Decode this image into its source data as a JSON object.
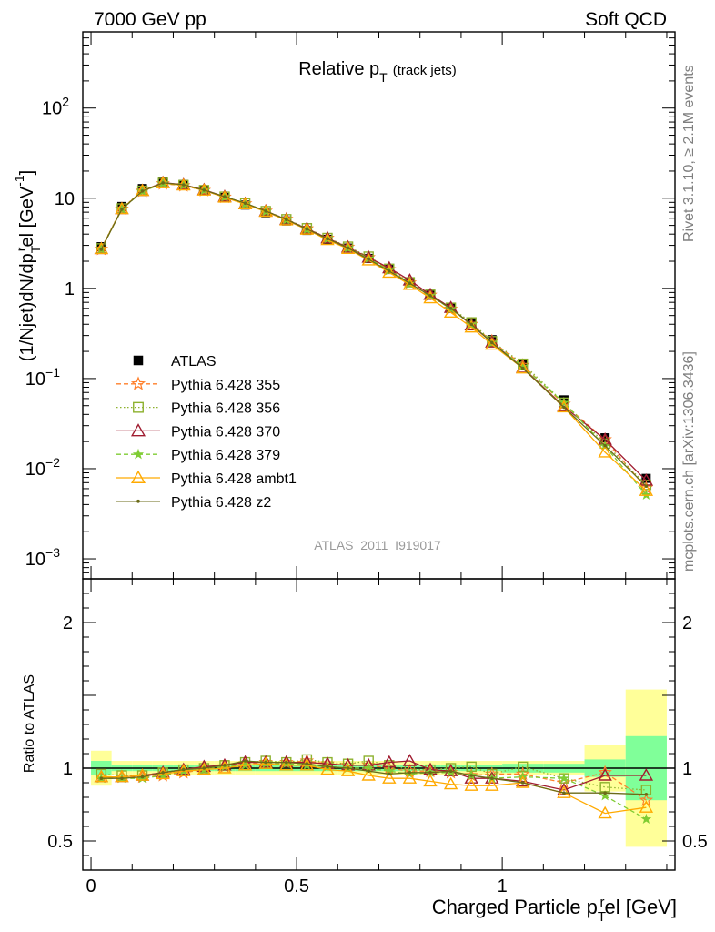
{
  "header": {
    "left": "7000 GeV pp",
    "right": "Soft QCD"
  },
  "side_text": {
    "rivet": "Rivet 3.1.10, ≥ 2.1M events",
    "mcplots": "mcplots.cern.ch [arXiv:1306.3436]"
  },
  "watermark": "ATLAS_2011_I919017",
  "colors": {
    "ATLAS": "#000000",
    "p355": "#ff7f2a",
    "p356": "#8db12e",
    "p370": "#a01c30",
    "p379": "#7fcc33",
    "ambt1": "#ffaa00",
    "z2": "#6b6b18",
    "band_green": "#80ff99",
    "band_yellow": "#ffff99"
  },
  "chart_data": [
    {
      "type": "line",
      "title": "Relative p_T (track jets)",
      "title_main": "Relative p",
      "title_sub": "T",
      "title_note": "(track jets)",
      "ylabel": "(1/Njet)dN/dp^rel_T [GeV^-1]",
      "ylabel_parts": [
        "(1/Njet)dN/dp",
        "T",
        "r",
        "el [GeV",
        "-1",
        "]"
      ],
      "yscale": "log",
      "ylim": [
        0.0006,
        700
      ],
      "xlim": [
        -0.02,
        1.42
      ],
      "y_ticks": [
        {
          "value": 0.001,
          "base": "10",
          "exp": "−3"
        },
        {
          "value": 0.01,
          "base": "10",
          "exp": "−2"
        },
        {
          "value": 0.1,
          "base": "10",
          "exp": "−1"
        },
        {
          "value": 1,
          "base": "1",
          "exp": ""
        },
        {
          "value": 10,
          "base": "10",
          "exp": ""
        },
        {
          "value": 100,
          "base": "10",
          "exp": "2"
        }
      ],
      "legend_position": "lower-left",
      "x": [
        0.025,
        0.075,
        0.125,
        0.175,
        0.225,
        0.275,
        0.325,
        0.375,
        0.425,
        0.475,
        0.525,
        0.575,
        0.625,
        0.675,
        0.725,
        0.775,
        0.825,
        0.875,
        0.925,
        0.975,
        1.05,
        1.15,
        1.25,
        1.35
      ],
      "series": [
        {
          "name": "ATLAS",
          "key": "ATLAS",
          "marker": "square",
          "line": "none",
          "values": [
            2.9,
            8.1,
            12.8,
            15.3,
            14.2,
            12.3,
            10.2,
            8.4,
            6.9,
            5.6,
            4.4,
            3.5,
            2.8,
            2.15,
            1.62,
            1.18,
            0.86,
            0.61,
            0.42,
            0.27,
            0.145,
            0.058,
            0.022,
            0.0078
          ]
        },
        {
          "name": "Pythia 6.428 355",
          "key": "p355",
          "marker": "star",
          "line": "dashed",
          "values": [
            2.72,
            7.6,
            12.0,
            14.5,
            13.8,
            12.2,
            10.3,
            8.7,
            7.2,
            5.85,
            4.6,
            3.6,
            2.87,
            2.2,
            1.62,
            1.15,
            0.84,
            0.59,
            0.4,
            0.26,
            0.14,
            0.052,
            0.021,
            0.0061
          ]
        },
        {
          "name": "Pythia 6.428 356",
          "key": "p356",
          "marker": "open-square",
          "line": "dotted",
          "values": [
            2.78,
            7.7,
            12.1,
            14.8,
            14.0,
            12.3,
            10.4,
            8.8,
            7.2,
            5.85,
            4.65,
            3.62,
            2.9,
            2.25,
            1.65,
            1.17,
            0.85,
            0.61,
            0.42,
            0.26,
            0.146,
            0.054,
            0.019,
            0.0066
          ]
        },
        {
          "name": "Pythia 6.428 370",
          "key": "p370",
          "marker": "open-triangle",
          "line": "solid",
          "values": [
            2.74,
            7.6,
            12.1,
            14.9,
            14.1,
            12.4,
            10.4,
            8.7,
            7.2,
            5.8,
            4.6,
            3.6,
            2.85,
            2.2,
            1.68,
            1.23,
            0.85,
            0.61,
            0.39,
            0.252,
            0.132,
            0.049,
            0.021,
            0.0074
          ]
        },
        {
          "name": "Pythia 6.428 379",
          "key": "p379",
          "marker": "star-small",
          "line": "dashed",
          "values": [
            2.71,
            7.55,
            11.9,
            14.6,
            13.9,
            12.2,
            10.3,
            8.6,
            7.1,
            5.75,
            4.5,
            3.55,
            2.8,
            2.15,
            1.58,
            1.13,
            0.83,
            0.59,
            0.4,
            0.25,
            0.136,
            0.054,
            0.0178,
            0.0051
          ]
        },
        {
          "name": "Pythia 6.428 ambt1",
          "key": "ambt1",
          "marker": "open-triangle",
          "line": "solid",
          "values": [
            2.74,
            7.6,
            12.1,
            14.7,
            13.9,
            12.2,
            10.2,
            8.6,
            7.1,
            5.7,
            4.5,
            3.45,
            2.75,
            2.05,
            1.5,
            1.1,
            0.78,
            0.54,
            0.37,
            0.238,
            0.13,
            0.048,
            0.0152,
            0.0057
          ]
        },
        {
          "name": "Pythia 6.428 z2",
          "key": "z2",
          "marker": "dot",
          "line": "solid",
          "values": [
            2.71,
            7.55,
            12.0,
            14.8,
            14.1,
            12.3,
            10.4,
            8.8,
            7.2,
            5.8,
            4.55,
            3.55,
            2.8,
            2.1,
            1.55,
            1.14,
            0.83,
            0.6,
            0.4,
            0.25,
            0.13,
            0.048,
            0.018,
            0.0064
          ]
        }
      ]
    },
    {
      "type": "line",
      "ylabel": "Ratio to ATLAS",
      "xlabel": "Charged Particle p^rel_T [GeV]",
      "xlabel_parts": [
        "Charged Particle p",
        "T",
        "r",
        "el [GeV]"
      ],
      "ylim": [
        0.3,
        2.3
      ],
      "xlim": [
        -0.02,
        1.42
      ],
      "y_ticks": [
        {
          "value": 0.5,
          "label": "0.5"
        },
        {
          "value": 1,
          "label": "1"
        },
        {
          "value": 2,
          "label": "2"
        }
      ],
      "x_ticks": [
        {
          "value": 0,
          "label": "0"
        },
        {
          "value": 0.5,
          "label": "0.5"
        },
        {
          "value": 1,
          "label": "1"
        }
      ],
      "band_bins": [
        {
          "lo": 0,
          "hi": 0.05,
          "stat": 0.05,
          "total": 0.12
        },
        {
          "lo": 0.05,
          "hi": 0.1,
          "stat": 0.02,
          "total": 0.05
        },
        {
          "lo": 0.1,
          "hi": 0.15,
          "stat": 0.02,
          "total": 0.05
        },
        {
          "lo": 0.15,
          "hi": 0.2,
          "stat": 0.02,
          "total": 0.05
        },
        {
          "lo": 0.2,
          "hi": 0.25,
          "stat": 0.02,
          "total": 0.05
        },
        {
          "lo": 0.25,
          "hi": 0.3,
          "stat": 0.02,
          "total": 0.05
        },
        {
          "lo": 0.3,
          "hi": 0.35,
          "stat": 0.02,
          "total": 0.05
        },
        {
          "lo": 0.35,
          "hi": 0.4,
          "stat": 0.02,
          "total": 0.05
        },
        {
          "lo": 0.4,
          "hi": 0.45,
          "stat": 0.02,
          "total": 0.05
        },
        {
          "lo": 0.45,
          "hi": 0.5,
          "stat": 0.02,
          "total": 0.05
        },
        {
          "lo": 0.5,
          "hi": 0.55,
          "stat": 0.02,
          "total": 0.05
        },
        {
          "lo": 0.55,
          "hi": 0.6,
          "stat": 0.02,
          "total": 0.05
        },
        {
          "lo": 0.6,
          "hi": 0.65,
          "stat": 0.02,
          "total": 0.05
        },
        {
          "lo": 0.65,
          "hi": 0.7,
          "stat": 0.02,
          "total": 0.05
        },
        {
          "lo": 0.7,
          "hi": 0.75,
          "stat": 0.02,
          "total": 0.05
        },
        {
          "lo": 0.75,
          "hi": 0.8,
          "stat": 0.02,
          "total": 0.05
        },
        {
          "lo": 0.8,
          "hi": 0.85,
          "stat": 0.02,
          "total": 0.05
        },
        {
          "lo": 0.85,
          "hi": 0.9,
          "stat": 0.02,
          "total": 0.05
        },
        {
          "lo": 0.9,
          "hi": 0.95,
          "stat": 0.02,
          "total": 0.05
        },
        {
          "lo": 0.95,
          "hi": 1.0,
          "stat": 0.02,
          "total": 0.05
        },
        {
          "lo": 1.0,
          "hi": 1.1,
          "stat": 0.03,
          "total": 0.05
        },
        {
          "lo": 1.1,
          "hi": 1.2,
          "stat": 0.03,
          "total": 0.05
        },
        {
          "lo": 1.2,
          "hi": 1.3,
          "stat": 0.06,
          "total": 0.16
        },
        {
          "lo": 1.3,
          "hi": 1.4,
          "stat": 0.22,
          "total": 0.54
        }
      ],
      "series": [
        {
          "name": "Pythia 6.428 355",
          "key": "p355",
          "values": [
            0.94,
            0.94,
            0.94,
            0.95,
            0.97,
            0.99,
            1.01,
            1.03,
            1.04,
            1.04,
            1.05,
            1.03,
            1.02,
            1.02,
            1.0,
            0.98,
            0.98,
            0.97,
            0.95,
            0.96,
            0.96,
            0.9,
            0.97,
            0.78
          ]
        },
        {
          "name": "Pythia 6.428 356",
          "key": "p356",
          "values": [
            0.96,
            0.95,
            0.95,
            0.97,
            0.99,
            1.0,
            1.02,
            1.04,
            1.05,
            1.04,
            1.06,
            1.04,
            1.03,
            1.05,
            1.02,
            0.99,
            0.99,
            1.0,
            1.01,
            0.96,
            1.01,
            0.93,
            0.87,
            0.85
          ]
        },
        {
          "name": "Pythia 6.428 370",
          "key": "p370",
          "values": [
            0.94,
            0.94,
            0.95,
            0.97,
            0.99,
            1.01,
            1.02,
            1.04,
            1.04,
            1.04,
            1.04,
            1.03,
            1.02,
            1.02,
            1.04,
            1.05,
            0.99,
            0.98,
            0.93,
            0.93,
            0.91,
            0.85,
            0.95,
            0.95
          ]
        },
        {
          "name": "Pythia 6.428 379",
          "key": "p379",
          "values": [
            0.93,
            0.93,
            0.93,
            0.95,
            0.98,
            0.99,
            1.01,
            1.02,
            1.03,
            1.03,
            1.02,
            1.01,
            1.0,
            1.0,
            0.98,
            0.96,
            0.97,
            0.97,
            0.95,
            0.93,
            0.94,
            0.93,
            0.81,
            0.65
          ]
        },
        {
          "name": "Pythia 6.428 ambt1",
          "key": "ambt1",
          "values": [
            0.94,
            0.94,
            0.95,
            0.96,
            0.98,
            0.99,
            1.0,
            1.02,
            1.03,
            1.02,
            1.02,
            0.99,
            0.98,
            0.95,
            0.93,
            0.93,
            0.91,
            0.89,
            0.88,
            0.88,
            0.9,
            0.83,
            0.69,
            0.73
          ]
        },
        {
          "name": "Pythia 6.428 z2",
          "key": "z2",
          "values": [
            0.93,
            0.93,
            0.94,
            0.97,
            0.99,
            1.0,
            1.02,
            1.05,
            1.04,
            1.04,
            1.03,
            1.01,
            1.0,
            0.98,
            0.96,
            0.97,
            0.97,
            0.98,
            0.95,
            0.93,
            0.9,
            0.83,
            0.83,
            0.82
          ]
        }
      ]
    }
  ]
}
